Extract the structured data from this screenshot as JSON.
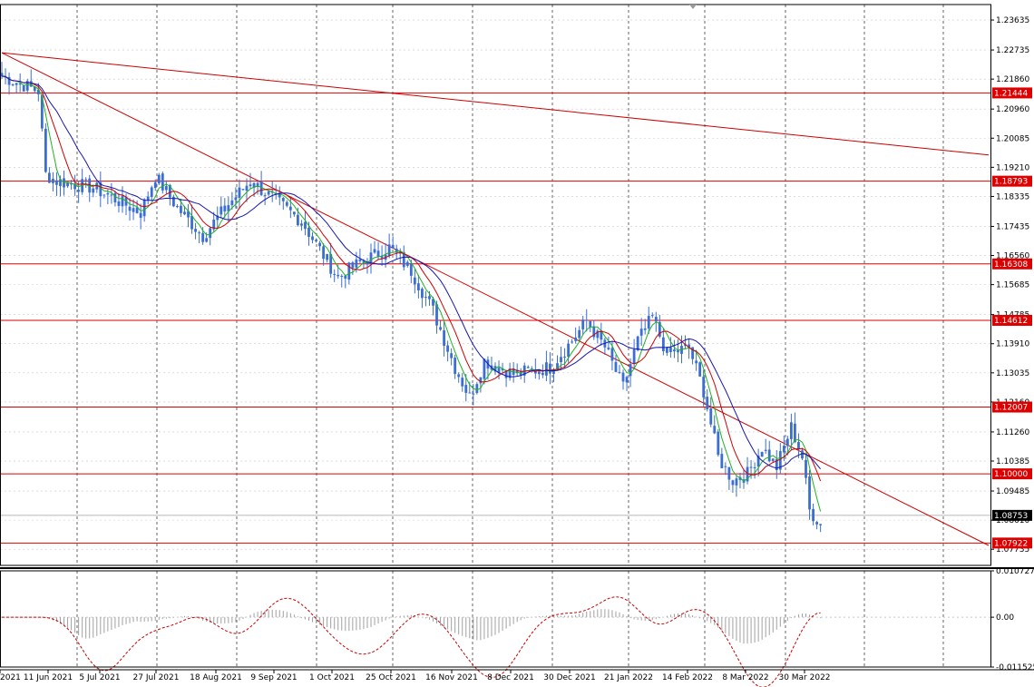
{
  "chart_data": [
    {
      "type": "candlestick",
      "symbol_hint": "EURUSD daily",
      "ylim": [
        1.0725,
        1.241
      ],
      "y_ticks": [
        "1.23635",
        "1.22735",
        "1.21860",
        "1.20960",
        "1.20085",
        "1.19210",
        "1.18335",
        "1.17435",
        "1.16560",
        "1.15685",
        "1.14785",
        "1.13910",
        "1.13035",
        "1.12160",
        "1.11260",
        "1.10385",
        "1.09485",
        "1.08610",
        "1.07735"
      ],
      "x_ticks": [
        "2021",
        "11 Jun 2021",
        "5 Jul 2021",
        "27 Jul 2021",
        "18 Aug 2021",
        "9 Sep 2021",
        "1 Oct 2021",
        "25 Oct 2021",
        "16 Nov 2021",
        "8 Dec 2021",
        "30 Dec 2021",
        "21 Jan 2022",
        "14 Feb 2022",
        "8 Mar 2022",
        "30 Mar 2022"
      ],
      "horizontal_levels": [
        {
          "label": "1.21444",
          "value": 1.21444,
          "color": "#dd0000"
        },
        {
          "label": "1.18793",
          "value": 1.18793,
          "color": "#dd0000"
        },
        {
          "label": "1.16308",
          "value": 1.16308,
          "color": "#dd0000"
        },
        {
          "label": "1.14612",
          "value": 1.14612,
          "color": "#dd0000"
        },
        {
          "label": "1.12007",
          "value": 1.12007,
          "color": "#dd0000"
        },
        {
          "label": "1.10000",
          "value": 1.1,
          "color": "#dd0000"
        },
        {
          "label": "1.07922",
          "value": 1.07922,
          "color": "#dd0000"
        }
      ],
      "current_price": {
        "label": "1.08753",
        "value": 1.08753
      },
      "trend_lines": [
        {
          "from": {
            "bar": 0,
            "price": 1.2265
          },
          "to": {
            "bar": 270,
            "price": 1.1958
          }
        },
        {
          "from": {
            "bar": 0,
            "price": 1.2265
          },
          "to": {
            "bar": 270,
            "price": 1.0785
          }
        }
      ],
      "anchors": [
        [
          0,
          1.2195
        ],
        [
          10,
          1.215
        ],
        [
          12,
          1.19
        ],
        [
          15,
          1.188
        ],
        [
          25,
          1.186
        ],
        [
          38,
          1.1785
        ],
        [
          42,
          1.1895
        ],
        [
          48,
          1.18
        ],
        [
          55,
          1.1715
        ],
        [
          62,
          1.181
        ],
        [
          68,
          1.188
        ],
        [
          75,
          1.182
        ],
        [
          82,
          1.176
        ],
        [
          86,
          1.169
        ],
        [
          92,
          1.159
        ],
        [
          98,
          1.1635
        ],
        [
          106,
          1.168
        ],
        [
          112,
          1.161
        ],
        [
          118,
          1.149
        ],
        [
          124,
          1.132
        ],
        [
          128,
          1.123
        ],
        [
          132,
          1.134
        ],
        [
          140,
          1.13
        ],
        [
          150,
          1.132
        ],
        [
          156,
          1.14
        ],
        [
          160,
          1.146
        ],
        [
          165,
          1.138
        ],
        [
          170,
          1.126
        ],
        [
          174,
          1.14
        ],
        [
          178,
          1.147
        ],
        [
          182,
          1.136
        ],
        [
          188,
          1.138
        ],
        [
          192,
          1.125
        ],
        [
          196,
          1.105
        ],
        [
          200,
          1.098
        ],
        [
          204,
          1.1
        ],
        [
          208,
          1.108
        ],
        [
          212,
          1.102
        ],
        [
          216,
          1.114
        ],
        [
          219,
          1.105
        ],
        [
          221,
          1.089
        ],
        [
          224,
          1.085
        ]
      ],
      "series_colors": {
        "candles": "#3a6ed4",
        "ma_fast": "#1fb31f",
        "ma_mid": "#d00000",
        "ma_slow": "#1515b0"
      }
    },
    {
      "type": "oscillator",
      "ylim": [
        -0.01152,
        0.01073
      ],
      "y_ticks": [
        "0.010727",
        "0.00",
        "-0.011525"
      ],
      "colors": {
        "histogram": "#a0a0a0",
        "signal": "#cc0000"
      }
    }
  ]
}
